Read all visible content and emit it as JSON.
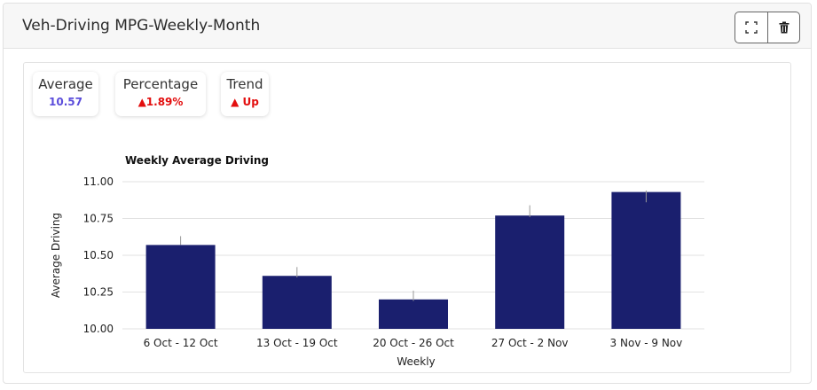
{
  "header": {
    "title": "Veh-Driving MPG-Weekly-Month"
  },
  "icons": {
    "expand": "expand-icon",
    "delete": "trash-icon"
  },
  "kpis": {
    "average": {
      "label": "Average",
      "value": "10.57"
    },
    "percentage": {
      "label": "Percentage",
      "value": "▲1.89%"
    },
    "trend": {
      "label": "Trend",
      "value": "▲ Up"
    }
  },
  "colors": {
    "bar": "#1a1f6e",
    "average_value": "#5b4ddb",
    "trend_up": "#e30f0f"
  },
  "chart_data": {
    "type": "bar",
    "title": "Weekly Average Driving",
    "xlabel": "Weekly",
    "ylabel": "Average Driving",
    "categories": [
      "6 Oct - 12 Oct",
      "13 Oct - 19 Oct",
      "20 Oct - 26 Oct",
      "27 Oct - 2 Nov",
      "3 Nov - 9 Nov"
    ],
    "values": [
      10.57,
      10.36,
      10.2,
      10.77,
      10.93
    ],
    "error_bars": [
      [
        10.57,
        10.63
      ],
      [
        10.35,
        10.42
      ],
      [
        10.19,
        10.26
      ],
      [
        10.76,
        10.84
      ],
      [
        10.86,
        10.94
      ]
    ],
    "ylim": [
      10.0,
      11.0
    ],
    "yticks": [
      "10.00",
      "10.25",
      "10.50",
      "10.75",
      "11.00"
    ],
    "ytick_values": [
      10.0,
      10.25,
      10.5,
      10.75,
      11.0
    ],
    "grid": true
  }
}
